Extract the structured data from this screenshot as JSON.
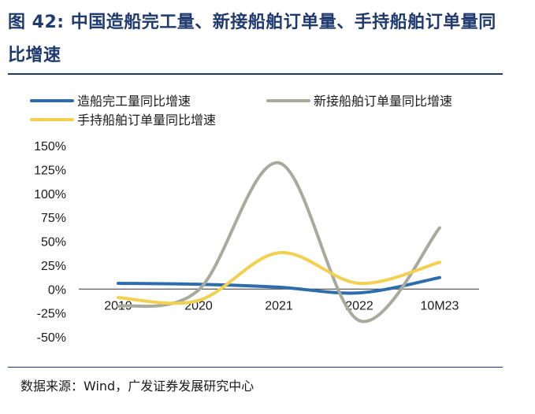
{
  "header": {
    "title": "图 42:  中国造船完工量、新接船舶订单量、手持船舶订单量同比增速"
  },
  "footer": {
    "source": "数据来源：Wind，广发证券发展研究中心"
  },
  "colors": {
    "title": "#1f3a6e",
    "series_completed": "#2e6dab",
    "series_new_orders": "#a8aa9c",
    "series_backlog": "#f3d04f"
  },
  "chart_data": {
    "type": "line",
    "title": "",
    "xlabel": "",
    "ylabel": "",
    "categories": [
      "2019",
      "2020",
      "2021",
      "2022",
      "10M23"
    ],
    "ylim": [
      -0.5,
      1.5
    ],
    "yticks": [
      -0.5,
      -0.25,
      0,
      0.25,
      0.5,
      0.75,
      1.0,
      1.25,
      1.5
    ],
    "ytick_labels": [
      "-50%",
      "-25%",
      "0%",
      "25%",
      "50%",
      "75%",
      "100%",
      "125%",
      "150%"
    ],
    "legend_position": "top",
    "series": [
      {
        "name": "造船完工量同比增速",
        "color": "#2e6dab",
        "values": [
          0.06,
          0.05,
          0.02,
          -0.04,
          0.12
        ]
      },
      {
        "name": "新接船舶订单量同比增速",
        "color": "#a8aa9c",
        "values": [
          -0.18,
          -0.01,
          1.32,
          -0.33,
          0.64
        ]
      },
      {
        "name": "手持船舶订单量同比增速",
        "color": "#f3d04f",
        "values": [
          -0.09,
          -0.12,
          0.38,
          0.06,
          0.28
        ]
      }
    ]
  }
}
